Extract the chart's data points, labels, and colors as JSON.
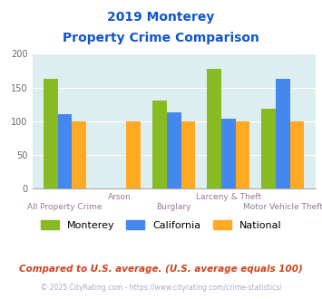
{
  "title_line1": "2019 Monterey",
  "title_line2": "Property Crime Comparison",
  "categories": [
    "All Property Crime",
    "Arson",
    "Burglary",
    "Larceny & Theft",
    "Motor Vehicle Theft"
  ],
  "monterey": [
    163,
    0,
    130,
    177,
    119
  ],
  "california": [
    110,
    0,
    113,
    103,
    163
  ],
  "national": [
    100,
    100,
    100,
    100,
    100
  ],
  "bar_color_monterey": "#88bb22",
  "bar_color_california": "#4488ee",
  "bar_color_national": "#ffaa22",
  "bg_color": "#ddeef0",
  "ylim": [
    0,
    200
  ],
  "yticks": [
    0,
    50,
    100,
    150,
    200
  ],
  "legend_labels": [
    "Monterey",
    "California",
    "National"
  ],
  "footnote1": "Compared to U.S. average. (U.S. average equals 100)",
  "footnote2": "© 2025 CityRating.com - https://www.cityrating.com/crime-statistics/",
  "title_color": "#1155cc",
  "xlabel_color": "#997799",
  "footnote1_color": "#cc4422",
  "footnote2_color": "#aaaacc"
}
